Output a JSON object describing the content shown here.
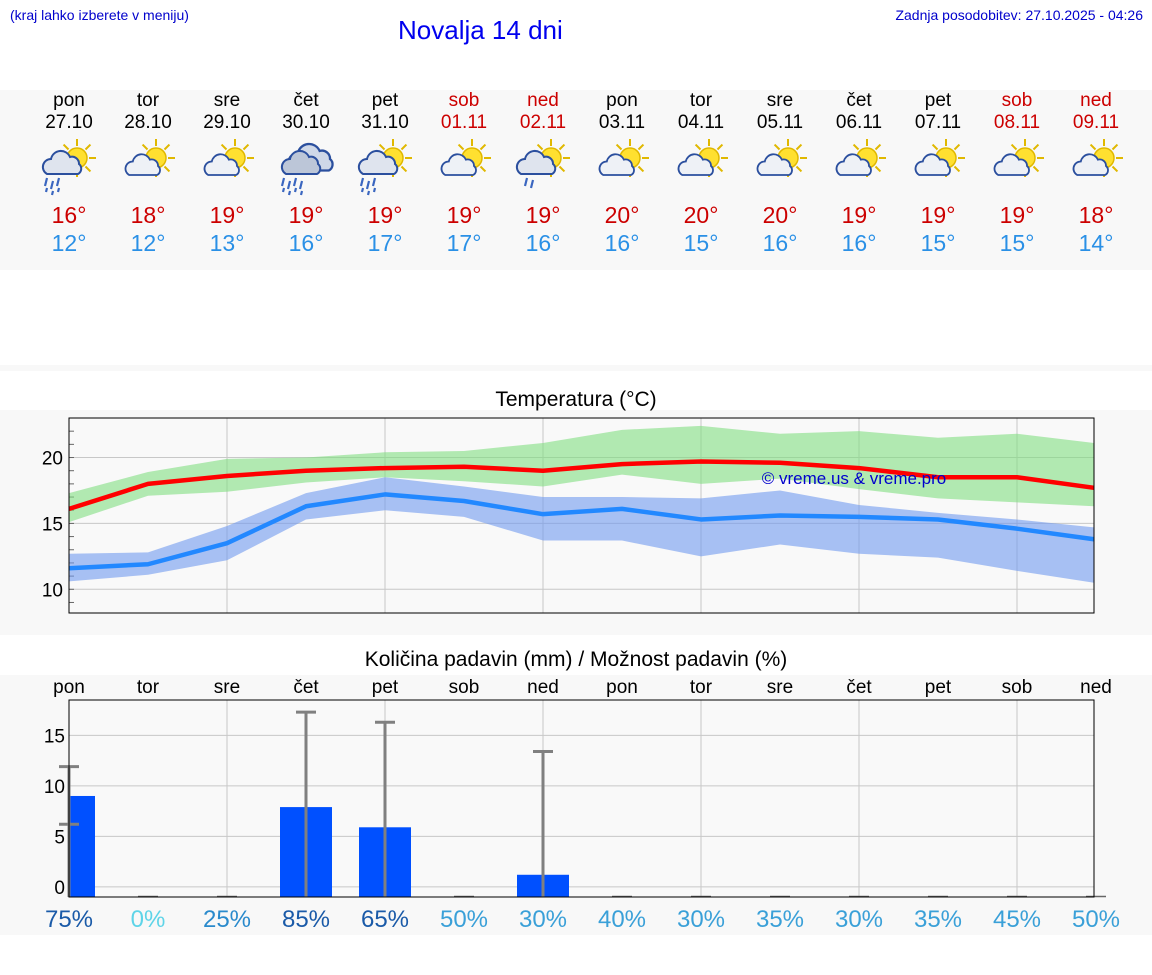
{
  "header": {
    "hint": "(kraj lahko izberete v meniju)",
    "title": "Novalja 14 dni",
    "updated": "Zadnja posodobitev: 27.10.2025 - 04:26"
  },
  "days": [
    {
      "name": "pon",
      "date": "27.10",
      "weekend": false,
      "icon": "sun-cloud-rain-icon",
      "max": "16°",
      "min": "12°"
    },
    {
      "name": "tor",
      "date": "28.10",
      "weekend": false,
      "icon": "sun-cloud-icon",
      "max": "18°",
      "min": "12°"
    },
    {
      "name": "sre",
      "date": "29.10",
      "weekend": false,
      "icon": "sun-cloud-icon",
      "max": "19°",
      "min": "13°"
    },
    {
      "name": "čet",
      "date": "30.10",
      "weekend": false,
      "icon": "cloud-rain-icon",
      "max": "19°",
      "min": "16°"
    },
    {
      "name": "pet",
      "date": "31.10",
      "weekend": false,
      "icon": "sun-cloud-rain-icon",
      "max": "19°",
      "min": "17°"
    },
    {
      "name": "sob",
      "date": "01.11",
      "weekend": true,
      "icon": "sun-cloud-icon",
      "max": "19°",
      "min": "17°"
    },
    {
      "name": "ned",
      "date": "02.11",
      "weekend": true,
      "icon": "sun-cloud-light-rain-icon",
      "max": "19°",
      "min": "16°"
    },
    {
      "name": "pon",
      "date": "03.11",
      "weekend": false,
      "icon": "sun-cloud-icon",
      "max": "20°",
      "min": "16°"
    },
    {
      "name": "tor",
      "date": "04.11",
      "weekend": false,
      "icon": "sun-cloud-icon",
      "max": "20°",
      "min": "15°"
    },
    {
      "name": "sre",
      "date": "05.11",
      "weekend": false,
      "icon": "sun-cloud-icon",
      "max": "20°",
      "min": "16°"
    },
    {
      "name": "čet",
      "date": "06.11",
      "weekend": false,
      "icon": "sun-cloud-icon",
      "max": "19°",
      "min": "16°"
    },
    {
      "name": "pet",
      "date": "07.11",
      "weekend": false,
      "icon": "sun-cloud-icon",
      "max": "19°",
      "min": "15°"
    },
    {
      "name": "sob",
      "date": "08.11",
      "weekend": true,
      "icon": "sun-cloud-icon",
      "max": "19°",
      "min": "15°"
    },
    {
      "name": "ned",
      "date": "09.11",
      "weekend": true,
      "icon": "sun-cloud-icon",
      "max": "18°",
      "min": "14°"
    }
  ],
  "chart_data": [
    {
      "type": "line",
      "title": "Temperatura (°C)",
      "ylim": [
        8.2,
        23
      ],
      "yticks": [
        10,
        15,
        20
      ],
      "grid": true,
      "watermark": "© vreme.us & vreme.pro",
      "x": [
        0,
        1,
        2,
        3,
        4,
        5,
        6,
        7,
        8,
        9,
        10,
        11,
        12,
        13
      ],
      "series": [
        {
          "values": [
            16.1,
            18.0,
            18.6,
            19.0,
            19.2,
            19.3,
            19.0,
            19.5,
            19.7,
            19.6,
            19.2,
            18.5,
            18.5,
            17.7
          ],
          "band_low": [
            15.1,
            17.1,
            17.4,
            18.1,
            18.5,
            18.2,
            17.8,
            18.7,
            18.0,
            18.4,
            17.6,
            16.9,
            16.6,
            16.3
          ],
          "band_high": [
            17.3,
            18.9,
            19.9,
            20.0,
            20.4,
            20.5,
            21.1,
            22.1,
            22.4,
            21.8,
            22.0,
            21.5,
            21.8,
            21.1
          ],
          "color": "#ff0000",
          "band_color": "#80dd80"
        },
        {
          "values": [
            11.6,
            11.9,
            13.5,
            16.3,
            17.2,
            16.7,
            15.7,
            16.1,
            15.3,
            15.6,
            15.5,
            15.3,
            14.6,
            13.8
          ],
          "band_low": [
            10.6,
            11.1,
            12.2,
            15.3,
            16.0,
            15.5,
            13.7,
            13.7,
            12.5,
            13.4,
            12.7,
            12.4,
            11.4,
            10.5
          ],
          "band_high": [
            12.7,
            12.8,
            14.8,
            17.3,
            18.5,
            17.8,
            17.0,
            17.0,
            16.9,
            17.5,
            16.4,
            15.8,
            15.3,
            14.7
          ],
          "color": "#2288ff",
          "band_color": "#7099ee"
        }
      ]
    },
    {
      "type": "bar",
      "title": "Količina padavin (mm) / Možnost padavin (%)",
      "ylim": [
        -1,
        18.5
      ],
      "yticks": [
        0,
        5,
        10,
        15
      ],
      "grid": true,
      "categories": [
        "pon",
        "tor",
        "sre",
        "čet",
        "pet",
        "sob",
        "ned",
        "pon",
        "tor",
        "sre",
        "čet",
        "pet",
        "sob",
        "ned"
      ],
      "values": [
        9.0,
        0,
        0,
        7.9,
        5.9,
        0,
        1.2,
        0,
        0,
        0,
        0,
        0,
        0,
        0
      ],
      "error_max": [
        11.9,
        0,
        0,
        17.3,
        16.3,
        0,
        13.4,
        0,
        0,
        0,
        0,
        0,
        0,
        0
      ],
      "error_min": [
        6.2,
        0,
        0,
        0,
        0,
        0,
        0,
        0,
        0,
        0,
        0,
        0,
        0,
        0
      ],
      "chance": [
        "75%",
        "0%",
        "25%",
        "85%",
        "65%",
        "50%",
        "30%",
        "40%",
        "30%",
        "35%",
        "30%",
        "35%",
        "45%",
        "50%"
      ],
      "chance_colors": [
        "#1a5aa8",
        "#5ed4e8",
        "#2a8acc",
        "#1a5aa8",
        "#1a5aa8",
        "#3aa0d8",
        "#3aa0d8",
        "#3aa0d8",
        "#3aa0d8",
        "#3aa0d8",
        "#3aa0d8",
        "#3aa0d8",
        "#3aa0d8",
        "#3aa0d8"
      ],
      "bar_color": "#0050ff"
    }
  ]
}
